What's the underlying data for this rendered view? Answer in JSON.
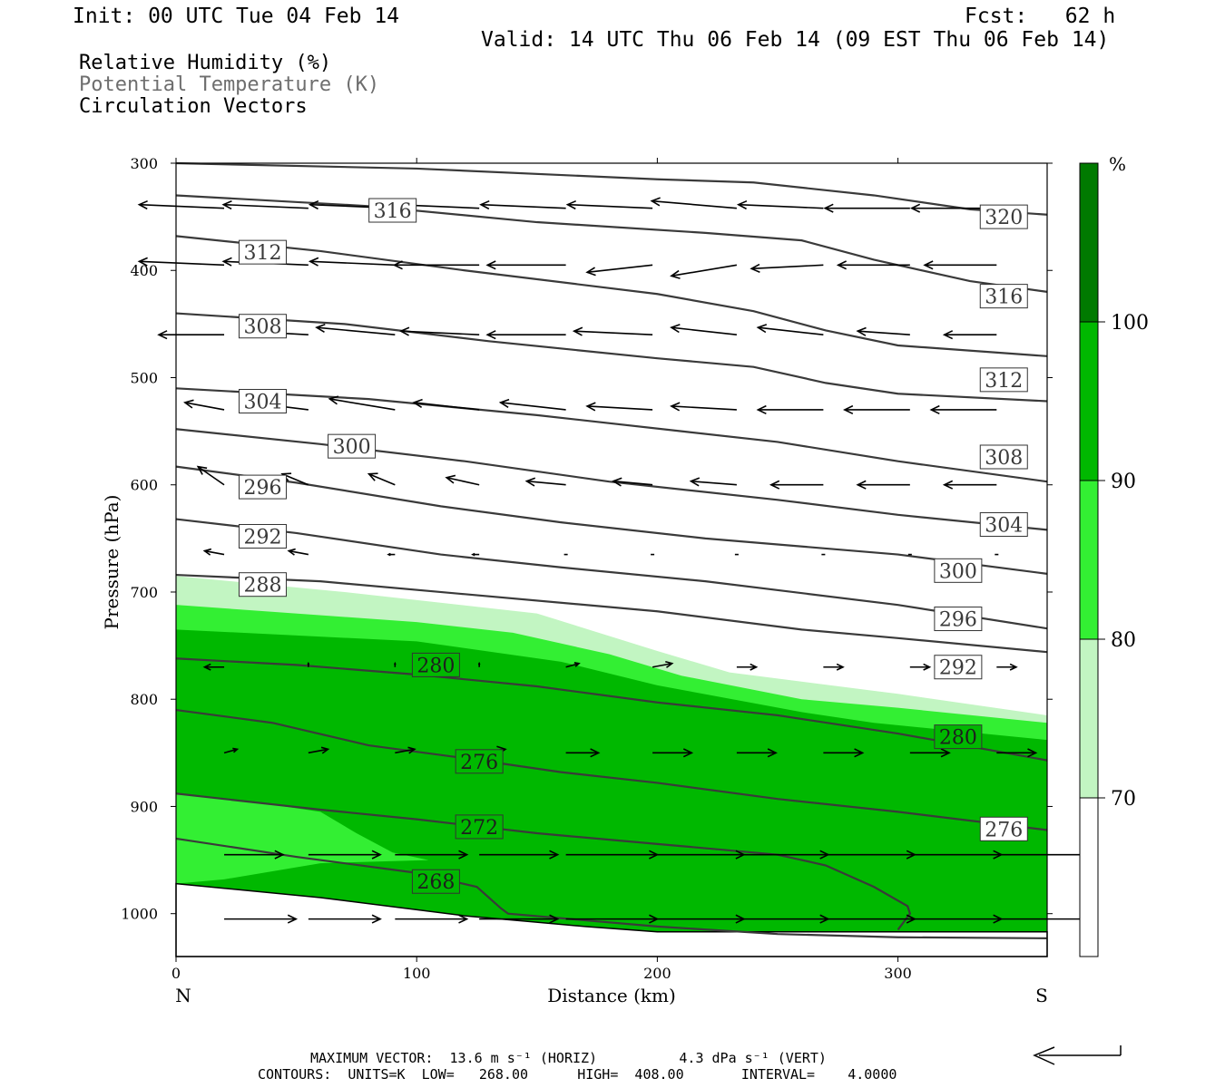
{
  "header": {
    "init": "Init: 00 UTC Tue 04 Feb 14",
    "fcst": "Fcst:   62 h",
    "valid": "Valid: 14 UTC Thu 06 Feb 14 (09 EST Thu 06 Feb 14)",
    "fields": [
      "Relative Humidity (%)",
      "Potential Temperature (K)",
      "Circulation Vectors"
    ]
  },
  "colors": {
    "rh70": "#c2f5c2",
    "rh80": "#33ef33",
    "rh90": "#00b800",
    "rh100": "#007a00",
    "contour": "#3a3a3a",
    "potential_temp_label": "#6e6e6e"
  },
  "chart_data": {
    "type": "cross-section",
    "x_axis": {
      "label": "Distance (km)",
      "range": [
        0,
        362
      ],
      "ticks": [
        0,
        100,
        200,
        300
      ],
      "end_labels": {
        "left": "N",
        "right": "S"
      }
    },
    "y_axis": {
      "label": "Pressure (hPa)",
      "range": [
        300,
        1040
      ],
      "ticks": [
        300,
        400,
        500,
        600,
        700,
        800,
        900,
        1000
      ]
    },
    "rh_fill": {
      "levels": [
        70,
        80,
        90,
        100
      ],
      "unit_label": "%",
      "bands": [
        {
          "min": 70,
          "upper": [
            [
              0,
              685
            ],
            [
              70,
              700
            ],
            [
              150,
              720
            ],
            [
              200,
              755
            ],
            [
              230,
              775
            ],
            [
              300,
              795
            ],
            [
              362,
              815
            ]
          ],
          "ground": true
        },
        {
          "min": 80,
          "upper": [
            [
              0,
              712
            ],
            [
              100,
              728
            ],
            [
              140,
              738
            ],
            [
              180,
              758
            ],
            [
              210,
              778
            ],
            [
              260,
              800
            ],
            [
              300,
              808
            ],
            [
              362,
              822
            ]
          ],
          "ground": true
        },
        {
          "min": 90,
          "upper": [
            [
              0,
              735
            ],
            [
              100,
              746
            ],
            [
              160,
              765
            ],
            [
              200,
              787
            ],
            [
              260,
              812
            ],
            [
              290,
              822
            ],
            [
              362,
              838
            ]
          ],
          "ground": true
        },
        {
          "min": 80,
          "boundary": [
            [
              0,
              888
            ],
            [
              30,
              895
            ],
            [
              60,
              905
            ],
            [
              75,
              925
            ],
            [
              90,
              943
            ],
            [
              105,
              950
            ],
            [
              60,
              953
            ],
            [
              20,
              968
            ],
            [
              0,
              972
            ]
          ]
        }
      ]
    },
    "theta_contours": {
      "units": "K",
      "low": "268.00",
      "high": "408.00",
      "interval": "4.0000",
      "lines": [
        {
          "value": 268,
          "points": [
            [
              0,
              930
            ],
            [
              50,
              947
            ],
            [
              100,
              962
            ],
            [
              125,
              975
            ],
            [
              135,
              995
            ],
            [
              138,
              1000
            ],
            [
              200,
              1012
            ],
            [
              250,
              1019
            ],
            [
              300,
              1022
            ],
            [
              362,
              1023
            ]
          ]
        },
        {
          "value": 272,
          "points": [
            [
              0,
              888
            ],
            [
              60,
              903
            ],
            [
              100,
              912
            ],
            [
              150,
              925
            ],
            [
              200,
              935
            ],
            [
              250,
              945
            ],
            [
              270,
              955
            ],
            [
              290,
              975
            ],
            [
              304,
              993
            ],
            [
              305,
              1000
            ],
            [
              300,
              1015
            ]
          ]
        },
        {
          "value": 276,
          "points": [
            [
              0,
              810
            ],
            [
              40,
              822
            ],
            [
              80,
              843
            ],
            [
              120,
              855
            ],
            [
              160,
              868
            ],
            [
              200,
              878
            ],
            [
              250,
              893
            ],
            [
              300,
              905
            ],
            [
              362,
              922
            ]
          ]
        },
        {
          "value": 280,
          "points": [
            [
              0,
              762
            ],
            [
              50,
              768
            ],
            [
              100,
              777
            ],
            [
              150,
              788
            ],
            [
              200,
              803
            ],
            [
              250,
              815
            ],
            [
              300,
              832
            ],
            [
              362,
              857
            ]
          ]
        },
        {
          "value": 288,
          "points": [
            [
              0,
              684
            ],
            [
              60,
              690
            ],
            [
              120,
              702
            ],
            [
              200,
              718
            ],
            [
              260,
              735
            ],
            [
              300,
              743
            ],
            [
              362,
              756
            ]
          ]
        },
        {
          "value": 292,
          "points": [
            [
              0,
              632
            ],
            [
              50,
              645
            ],
            [
              110,
              665
            ],
            [
              160,
              677
            ],
            [
              220,
              690
            ],
            [
              300,
              712
            ],
            [
              362,
              734
            ]
          ]
        },
        {
          "value": 296,
          "points": [
            [
              0,
              583
            ],
            [
              50,
              598
            ],
            [
              110,
              620
            ],
            [
              160,
              635
            ],
            [
              220,
              650
            ],
            [
              300,
              665
            ],
            [
              362,
              683
            ]
          ]
        },
        {
          "value": 300,
          "points": [
            [
              0,
              548
            ],
            [
              60,
              562
            ],
            [
              120,
              578
            ],
            [
              180,
              597
            ],
            [
              250,
              614
            ],
            [
              300,
              628
            ],
            [
              362,
              642
            ]
          ]
        },
        {
          "value": 304,
          "points": [
            [
              0,
              510
            ],
            [
              80,
              520
            ],
            [
              150,
              535
            ],
            [
              210,
              550
            ],
            [
              250,
              560
            ],
            [
              300,
              578
            ],
            [
              362,
              597
            ]
          ]
        },
        {
          "value": 308,
          "points": [
            [
              0,
              440
            ],
            [
              70,
              450
            ],
            [
              130,
              466
            ],
            [
              200,
              482
            ],
            [
              240,
              490
            ],
            [
              270,
              505
            ],
            [
              300,
              515
            ],
            [
              362,
              522
            ]
          ]
        },
        {
          "value": 312,
          "points": [
            [
              0,
              368
            ],
            [
              60,
              382
            ],
            [
              120,
              400
            ],
            [
              200,
              422
            ],
            [
              240,
              438
            ],
            [
              270,
              456
            ],
            [
              300,
              470
            ],
            [
              362,
              480
            ]
          ]
        },
        {
          "value": 316,
          "points": [
            [
              0,
              330
            ],
            [
              80,
              340
            ],
            [
              150,
              355
            ],
            [
              220,
              365
            ],
            [
              260,
              372
            ],
            [
              290,
              390
            ],
            [
              330,
              410
            ],
            [
              362,
              420
            ]
          ]
        },
        {
          "value": 320,
          "points": [
            [
              0,
              300
            ],
            [
              100,
              305
            ],
            [
              200,
              315
            ],
            [
              240,
              318
            ],
            [
              290,
              330
            ],
            [
              330,
              343
            ],
            [
              362,
              348
            ]
          ]
        }
      ],
      "labels": [
        {
          "text": "268",
          "x": 108,
          "p": 970,
          "dark": true
        },
        {
          "text": "272",
          "x": 126,
          "p": 919,
          "dark": true
        },
        {
          "text": "276",
          "x": 126,
          "p": 858,
          "dark": true
        },
        {
          "text": "280",
          "x": 108,
          "p": 768,
          "dark": true
        },
        {
          "text": "280",
          "x": 325,
          "p": 835,
          "dark": true
        },
        {
          "text": "276",
          "x": 344,
          "p": 921,
          "dark": false
        },
        {
          "text": "288",
          "x": 36,
          "p": 693,
          "dark": false
        },
        {
          "text": "292",
          "x": 36,
          "p": 648,
          "dark": false
        },
        {
          "text": "296",
          "x": 36,
          "p": 602,
          "dark": false
        },
        {
          "text": "300",
          "x": 73,
          "p": 564,
          "dark": false
        },
        {
          "text": "304",
          "x": 36,
          "p": 522,
          "dark": false
        },
        {
          "text": "308",
          "x": 36,
          "p": 452,
          "dark": false
        },
        {
          "text": "312",
          "x": 36,
          "p": 383,
          "dark": false
        },
        {
          "text": "316",
          "x": 90,
          "p": 344,
          "dark": false
        },
        {
          "text": "320",
          "x": 344,
          "p": 350,
          "dark": false
        },
        {
          "text": "316",
          "x": 344,
          "p": 424,
          "dark": false
        },
        {
          "text": "312",
          "x": 344,
          "p": 502,
          "dark": false
        },
        {
          "text": "308",
          "x": 344,
          "p": 574,
          "dark": false
        },
        {
          "text": "304",
          "x": 344,
          "p": 637,
          "dark": false
        },
        {
          "text": "300",
          "x": 325,
          "p": 680,
          "dark": false
        },
        {
          "text": "296",
          "x": 325,
          "p": 725,
          "dark": false
        },
        {
          "text": "292",
          "x": 325,
          "p": 770,
          "dark": false
        }
      ]
    },
    "vectors": {
      "x_stations": [
        20,
        55,
        91,
        126,
        162,
        198,
        233,
        269,
        305,
        341
      ],
      "rows": [
        {
          "p": 342,
          "u": [
            -13,
            -13,
            -13,
            -13,
            -13,
            -13,
            -13,
            -13,
            -13,
            -13
          ],
          "w": [
            -1,
            -1,
            -1,
            -1,
            -1,
            -1,
            -2,
            -1,
            0,
            0
          ]
        },
        {
          "p": 395,
          "u": [
            -13,
            -13,
            -13,
            -13,
            -12,
            -10,
            -10,
            -11,
            -11,
            -11
          ],
          "w": [
            -1,
            -1,
            -1,
            0,
            0,
            2,
            3,
            1,
            0,
            0
          ]
        },
        {
          "p": 460,
          "u": [
            -10,
            -10,
            -12,
            -12,
            -12,
            -12,
            -10,
            -10,
            -8,
            -8
          ],
          "w": [
            0,
            -1,
            -2,
            -1,
            0,
            -1,
            -2,
            -2,
            -1,
            0
          ]
        },
        {
          "p": 530,
          "u": [
            -6,
            -9,
            -10,
            -10,
            -10,
            -10,
            -10,
            -10,
            -10,
            -10
          ],
          "w": [
            -2,
            -2,
            -3,
            -2,
            -2,
            -1,
            -1,
            0,
            0,
            0
          ]
        },
        {
          "p": 600,
          "u": [
            -4,
            -4,
            -4,
            -5,
            -6,
            -6,
            -7,
            -8,
            -8,
            -8
          ],
          "w": [
            -5,
            -3,
            -3,
            -2,
            -1,
            -1,
            -1,
            0,
            0,
            0
          ]
        },
        {
          "p": 665,
          "u": [
            -3,
            -3,
            -1,
            -1,
            0,
            0,
            0,
            0,
            0,
            0
          ],
          "w": [
            -1,
            -1,
            0,
            0,
            0,
            0,
            0,
            0,
            0,
            0
          ]
        },
        {
          "p": 770,
          "u": [
            -3,
            0,
            0,
            0,
            2,
            3,
            3,
            3,
            3,
            3
          ],
          "w": [
            0,
            -1,
            -1,
            -1,
            -1,
            -1,
            0,
            0,
            0,
            0
          ]
        },
        {
          "p": 850,
          "u": [
            2,
            3,
            3,
            4,
            5,
            6,
            6,
            6,
            6,
            6
          ],
          "w": [
            -1,
            -1,
            -1,
            -1,
            0,
            0,
            0,
            0,
            0,
            0
          ]
        },
        {
          "p": 945,
          "u": [
            9,
            11,
            11,
            12,
            14,
            14,
            14,
            14,
            14,
            14
          ],
          "w": [
            0,
            0,
            0,
            0,
            0,
            0,
            0,
            0,
            0,
            0
          ]
        },
        {
          "p": 1005,
          "u": [
            11,
            11,
            11,
            12,
            14,
            14,
            14,
            14,
            14,
            14
          ],
          "w": [
            0,
            0,
            0,
            0,
            0,
            0,
            0,
            0,
            0,
            0
          ]
        }
      ]
    },
    "terrain": [
      [
        0,
        972
      ],
      [
        60,
        985
      ],
      [
        120,
        1002
      ],
      [
        170,
        1012
      ],
      [
        200,
        1017
      ],
      [
        362,
        1017
      ]
    ],
    "footer": {
      "max_vector": "MAXIMUM VECTOR:  13.6 m s⁻¹ (HORIZ)          4.3 dPa s⁻¹ (VERT)",
      "contours": "CONTOURS:  UNITS=K  LOW=   268.00      HIGH=  408.00       INTERVAL=    4.0000"
    }
  }
}
